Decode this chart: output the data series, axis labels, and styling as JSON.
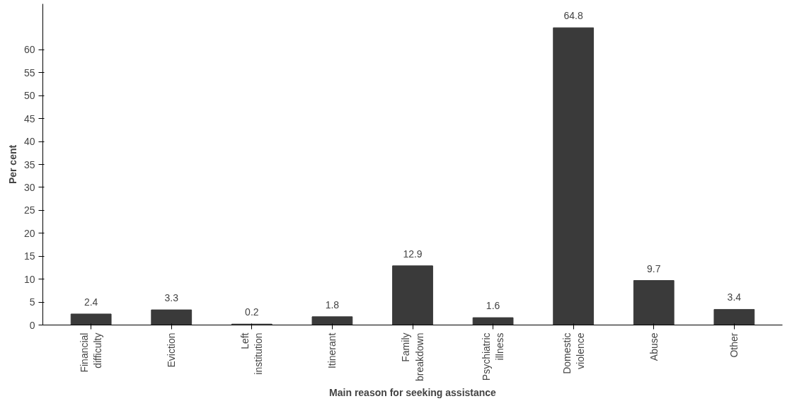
{
  "chart_data": {
    "type": "bar",
    "xlabel": "Main reason for seeking assistance",
    "ylabel": "Per cent",
    "categories": [
      "Financial\ndifficulty",
      "Eviction",
      "Left\ninstitution",
      "Itinerant",
      "Family\nbreakdown",
      "Psychiatric\nillness",
      "Domestic\nviolence",
      "Abuse",
      "Other"
    ],
    "values": [
      2.4,
      3.3,
      0.2,
      1.8,
      12.9,
      1.6,
      64.8,
      9.7,
      3.4
    ],
    "color": "#3a3a3a",
    "ylim": [
      0,
      70
    ],
    "yticks": [
      0,
      5,
      10,
      15,
      20,
      25,
      30,
      35,
      40,
      45,
      50,
      55,
      60
    ],
    "data_labels": true,
    "grid": false
  }
}
